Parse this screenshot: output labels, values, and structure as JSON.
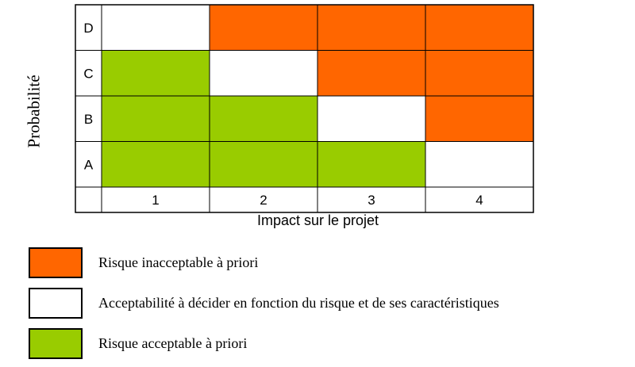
{
  "colors": {
    "red": "#ff6600",
    "white": "#ffffff",
    "green": "#99cc00",
    "border": "#000000"
  },
  "y_axis": {
    "title": "Probabilité",
    "levels": [
      "D",
      "C",
      "B",
      "A"
    ]
  },
  "x_axis": {
    "title": "Impact sur le projet",
    "levels": [
      "1",
      "2",
      "3",
      "4"
    ]
  },
  "grid": [
    [
      "white",
      "red",
      "red",
      "red"
    ],
    [
      "green",
      "white",
      "red",
      "red"
    ],
    [
      "green",
      "green",
      "white",
      "red"
    ],
    [
      "green",
      "green",
      "green",
      "white"
    ]
  ],
  "legend": [
    {
      "color": "red",
      "label": "Risque inacceptable à priori"
    },
    {
      "color": "white",
      "label": "Acceptabilité à décider en fonction du risque et de ses caractéristiques"
    },
    {
      "color": "green",
      "label": "Risque acceptable à priori"
    }
  ]
}
